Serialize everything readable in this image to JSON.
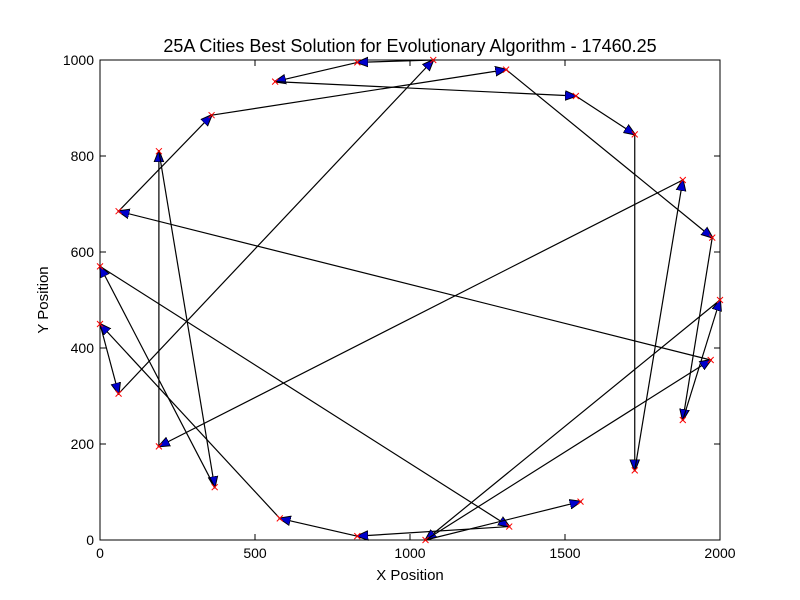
{
  "chart_data": {
    "type": "line",
    "title": "25A Cities Best Solution for Evolutionary Algorithm - 17460.25",
    "xlabel": "X Position",
    "ylabel": "Y Position",
    "xlim": [
      0,
      2000
    ],
    "ylim": [
      0,
      1000
    ],
    "xticks": [
      "0",
      "500",
      "1000",
      "1500",
      "2000"
    ],
    "yticks": [
      "0",
      "200",
      "400",
      "600",
      "800",
      "1000"
    ],
    "grid": false,
    "colors": {
      "route_line": "#000000",
      "arrow_head": "#0000cc",
      "city_marker": "#ff0000"
    },
    "route": [
      [
        2000,
        500
      ],
      [
        1050,
        0
      ],
      [
        1970,
        375
      ],
      [
        60,
        685
      ],
      [
        1310,
        980
      ],
      [
        1975,
        630
      ],
      [
        1880,
        250
      ],
      [
        2000,
        500
      ]
    ],
    "series": [
      {
        "points": [
          [
            0,
            450
          ],
          [
            60,
            305
          ],
          [
            1075,
            1000
          ],
          [
            830,
            995
          ],
          [
            565,
            955
          ],
          [
            1535,
            925
          ],
          [
            1725,
            845
          ],
          [
            1725,
            145
          ],
          [
            1880,
            750
          ],
          [
            190,
            195
          ],
          [
            190,
            810
          ],
          [
            370,
            110
          ],
          [
            0,
            570
          ],
          [
            1320,
            28
          ],
          [
            830,
            8
          ],
          [
            580,
            45
          ],
          [
            0,
            450
          ]
        ]
      },
      {
        "points": [
          [
            2000,
            500
          ],
          [
            1050,
            0
          ],
          [
            1550,
            80
          ]
        ]
      },
      {
        "points": [
          [
            360,
            885
          ],
          [
            1310,
            980
          ],
          [
            1975,
            630
          ],
          [
            1880,
            250
          ],
          [
            2000,
            500
          ]
        ]
      },
      {
        "points": [
          [
            60,
            685
          ],
          [
            360,
            885
          ]
        ]
      },
      {
        "points": [
          [
            1970,
            375
          ],
          [
            60,
            685
          ]
        ]
      },
      {
        "points": [
          [
            1050,
            0
          ],
          [
            1970,
            375
          ]
        ]
      }
    ]
  }
}
